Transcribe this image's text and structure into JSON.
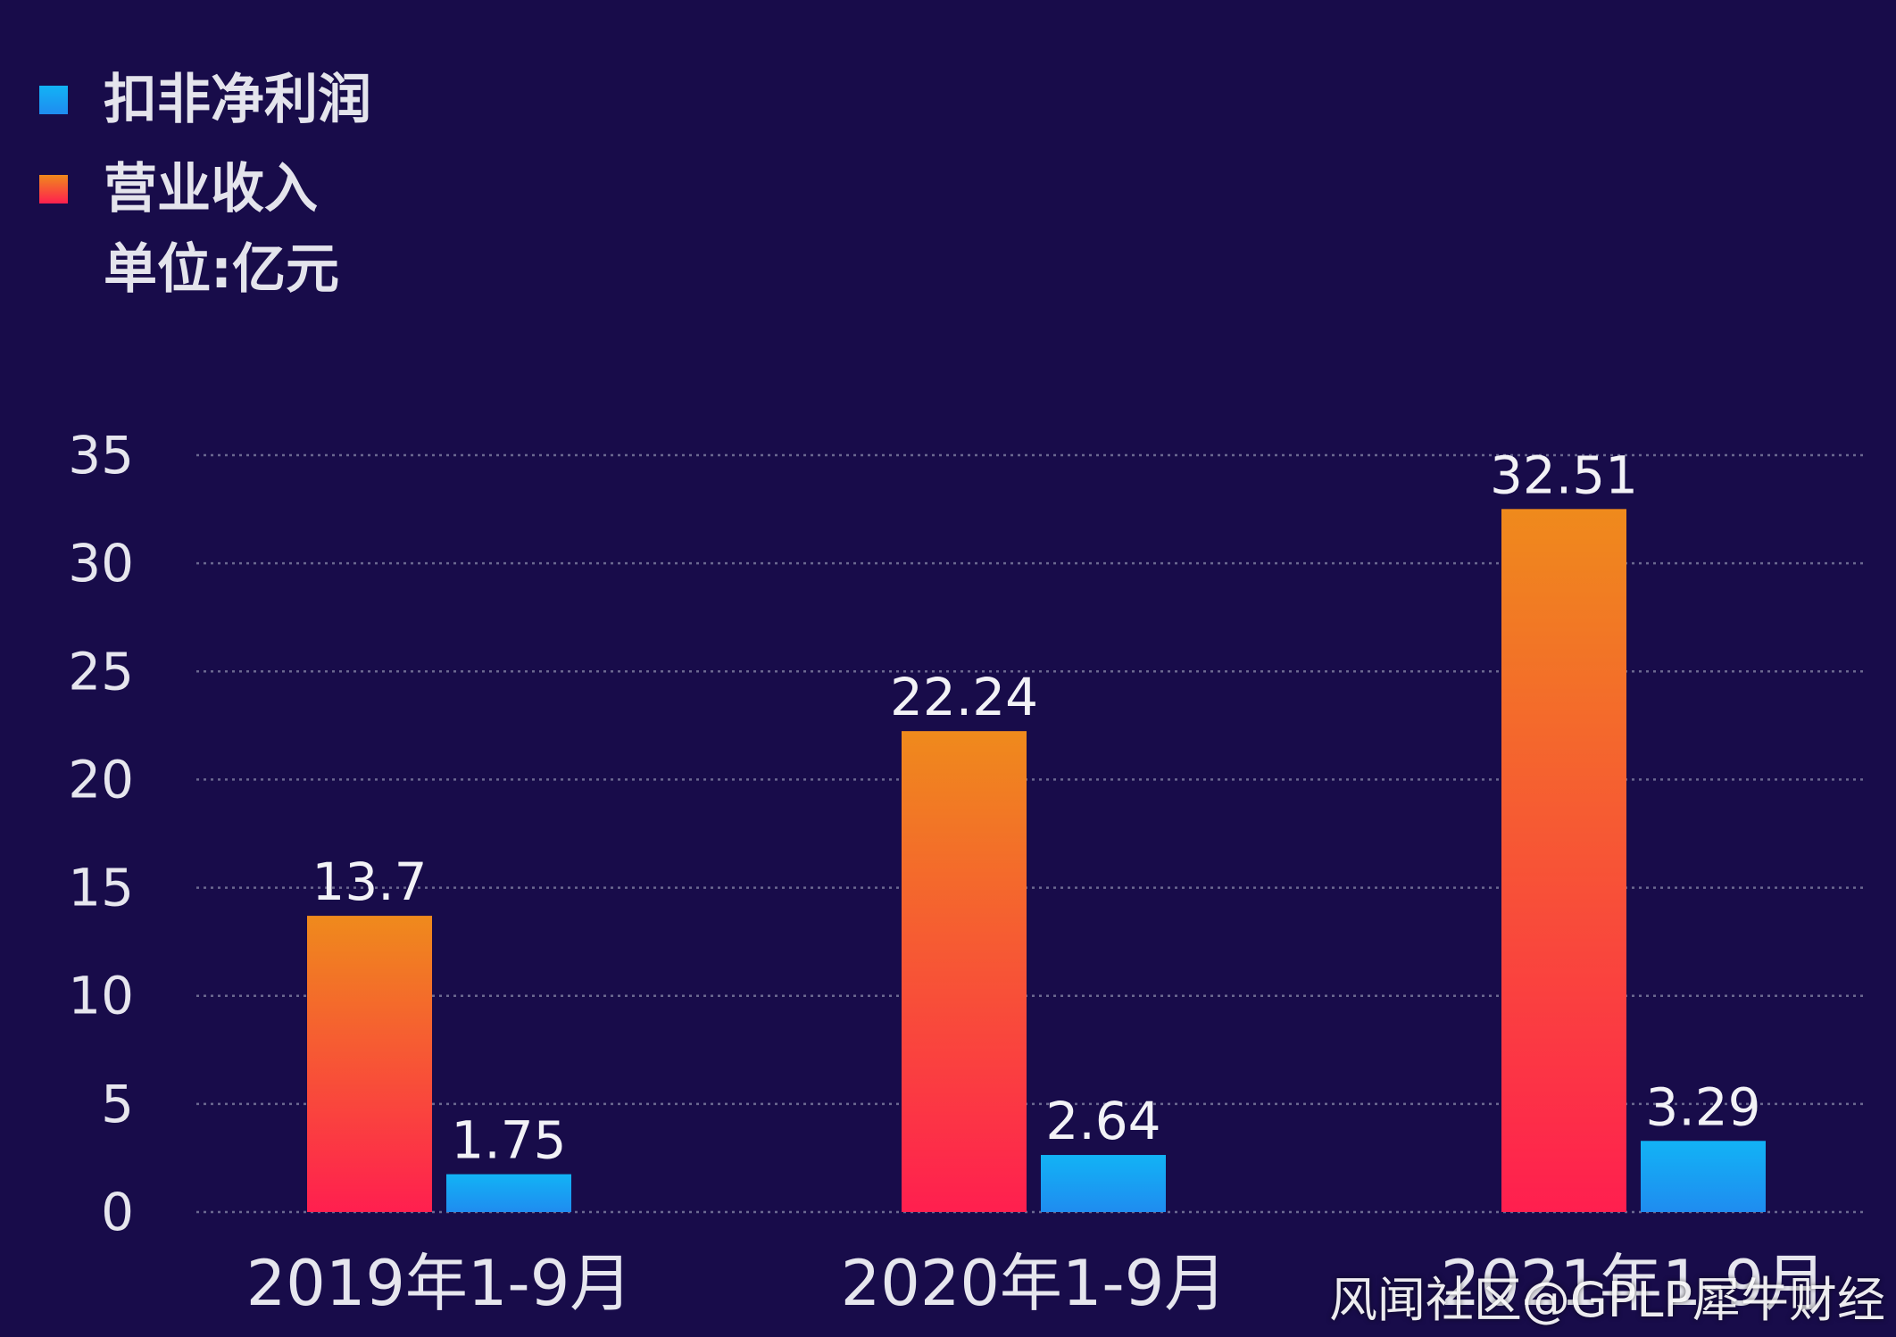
{
  "legend": {
    "series_1": "扣非净利润",
    "series_2": "营业收入",
    "unit": "单位:亿元"
  },
  "watermark": "风闻社区@GPLP犀牛财经",
  "colors": {
    "background": "#180c4a",
    "profit_top": "#12b3f5",
    "profit_bottom": "#1f8cf0",
    "revenue_top": "#ef8a1c",
    "revenue_bottom": "#ff1f4f",
    "grid": "#6b6890",
    "text": "#e6e6ee"
  },
  "chart_data": {
    "type": "bar",
    "title": "",
    "xlabel": "",
    "ylabel": "",
    "unit": "亿元",
    "categories": [
      "2019年1-9月",
      "2020年1-9月",
      "2021年1-9月"
    ],
    "series": [
      {
        "name": "营业收入",
        "values": [
          13.7,
          22.24,
          32.51
        ]
      },
      {
        "name": "扣非净利润",
        "values": [
          1.75,
          2.64,
          3.29
        ]
      }
    ],
    "data_labels": [
      [
        "13.7",
        "22.24",
        "32.51"
      ],
      [
        "1.75",
        "2.64",
        "3.29"
      ]
    ],
    "ylim": [
      0,
      35
    ],
    "yticks": [
      0,
      5,
      10,
      15,
      20,
      25,
      30,
      35
    ],
    "grid": true,
    "grid_style": "dotted",
    "legend_position": "top-left"
  }
}
